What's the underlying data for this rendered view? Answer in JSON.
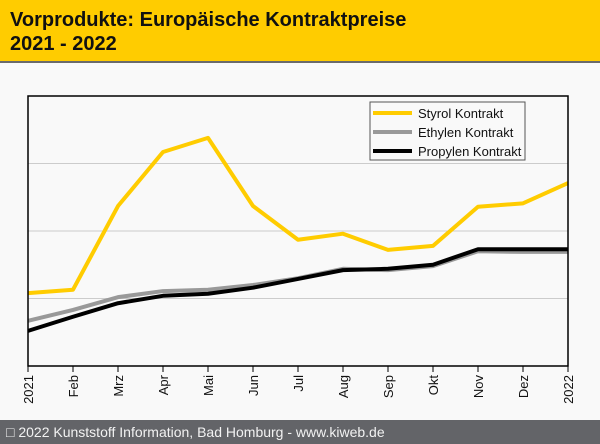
{
  "header": {
    "title_line1": "Vorprodukte: Europäische Kontraktpreise",
    "title_line2": "2021 - 2022"
  },
  "footer": {
    "text": "□ 2022 Kunststoff Information, Bad Homburg - www.kiweb.de"
  },
  "chart_data": {
    "type": "line",
    "title": "Vorprodukte: Europäische Kontraktpreise 2021 - 2022",
    "xlabel": "",
    "ylabel": "",
    "categories": [
      "2021",
      "Feb",
      "Mrz",
      "Apr",
      "Mai",
      "Jun",
      "Jul",
      "Aug",
      "Sep",
      "Okt",
      "Nov",
      "Dez",
      "2022"
    ],
    "ylim": [
      0,
      4
    ],
    "y_ticks_labeled": false,
    "grid": true,
    "legend_position": "top-right",
    "series": [
      {
        "name": "Styrol Kontrakt",
        "color": "#ffcc00",
        "values": [
          1.08,
          1.13,
          2.37,
          3.17,
          3.38,
          2.37,
          1.87,
          1.96,
          1.72,
          1.78,
          2.36,
          2.41,
          2.71
        ]
      },
      {
        "name": "Ethylen Kontrakt",
        "color": "#999999",
        "values": [
          0.67,
          0.83,
          1.02,
          1.11,
          1.13,
          1.2,
          1.3,
          1.44,
          1.42,
          1.48,
          1.7,
          1.69,
          1.69
        ]
      },
      {
        "name": "Propylen Kontrakt",
        "color": "#000000",
        "values": [
          0.52,
          0.73,
          0.93,
          1.04,
          1.07,
          1.16,
          1.29,
          1.42,
          1.44,
          1.5,
          1.73,
          1.73,
          1.73
        ]
      }
    ]
  }
}
